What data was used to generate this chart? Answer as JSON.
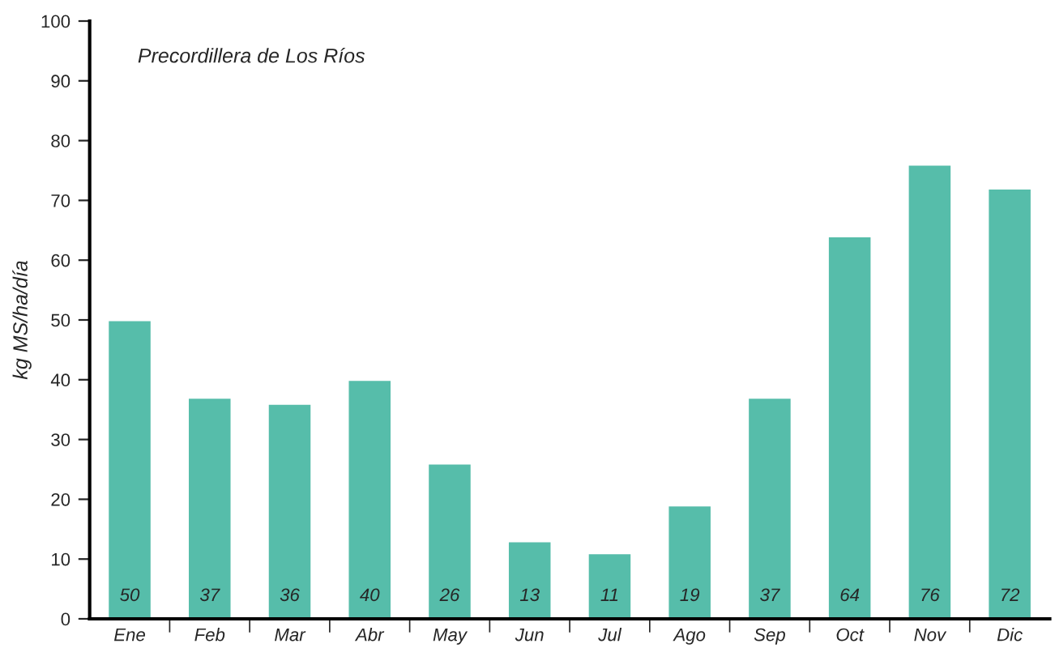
{
  "chart_data": {
    "type": "bar",
    "title": "Precordillera de Los Ríos",
    "ylabel": "kg MS/ha/día",
    "categories": [
      "Ene",
      "Feb",
      "Mar",
      "Abr",
      "May",
      "Jun",
      "Jul",
      "Ago",
      "Sep",
      "Oct",
      "Nov",
      "Dic"
    ],
    "values": [
      50,
      37,
      36,
      40,
      26,
      13,
      11,
      19,
      37,
      64,
      76,
      72
    ],
    "color": "#56bdaa",
    "ylim": [
      0,
      100
    ],
    "yticks": [
      0,
      10,
      20,
      30,
      40,
      50,
      60,
      70,
      80,
      90,
      100
    ],
    "grid": false,
    "data_labels": true,
    "legend": false
  }
}
